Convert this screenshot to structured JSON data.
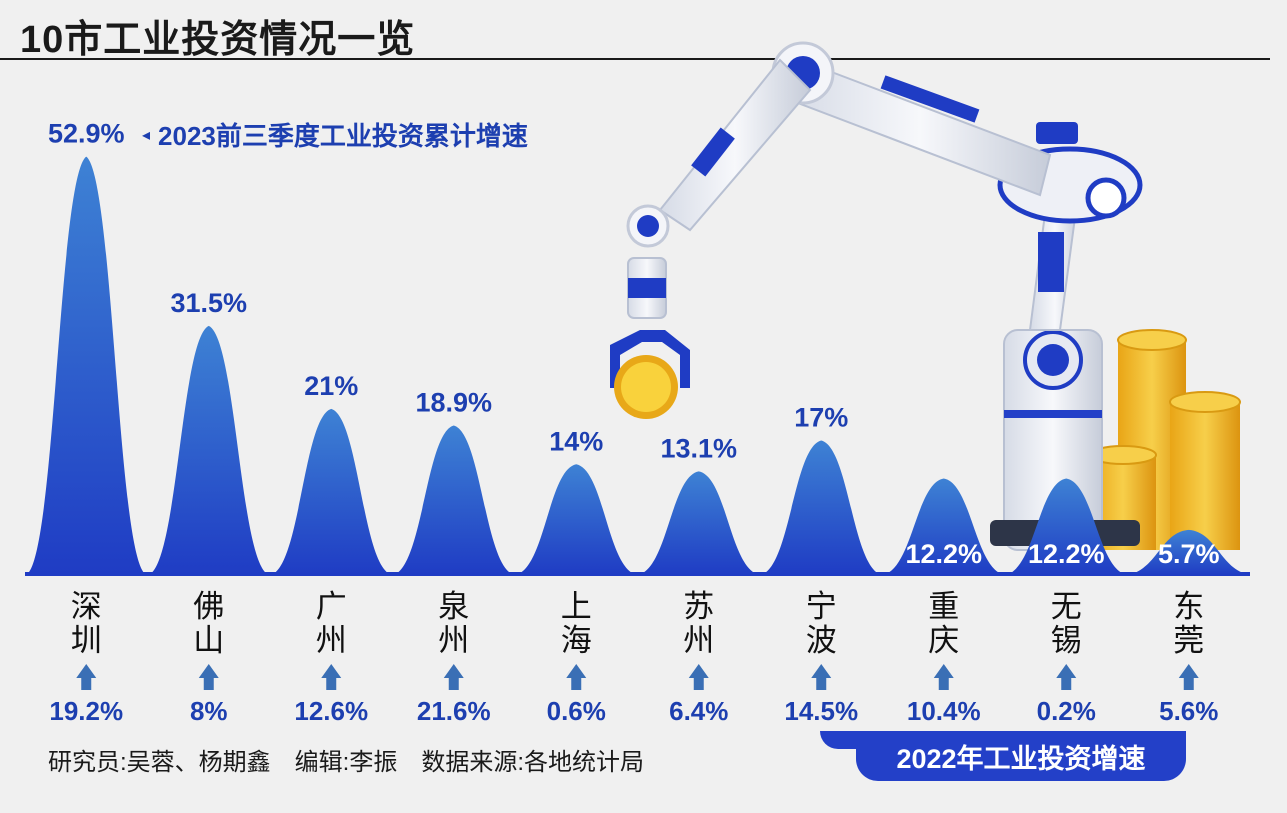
{
  "title": "10市工业投资情况一览",
  "legend": {
    "marker": "◂",
    "label": "2023前三季度工业投资累计增速"
  },
  "badge": "2022年工业投资增速",
  "credits": {
    "researchers": "研究员:吴蓉、杨期鑫",
    "editor": "编辑:李振",
    "source": "数据来源:各地统计局"
  },
  "colors": {
    "peak": "#1f3cc4",
    "peak_light": "#3e82d4",
    "label": "#1d3fb0",
    "arrow": "#3a6fb5"
  },
  "icons": {
    "growth": "up-arrow-icon",
    "illustration": "robot-arm-with-coins"
  },
  "chart_data": {
    "type": "area",
    "categories": [
      "深圳",
      "佛山",
      "广州",
      "泉州",
      "上海",
      "苏州",
      "宁波",
      "重庆",
      "无锡",
      "东莞"
    ],
    "series": [
      {
        "name": "2023前三季度工业投资累计增速",
        "values": [
          52.9,
          31.5,
          21,
          18.9,
          14,
          13.1,
          17,
          12.2,
          12.2,
          5.7
        ],
        "labels": [
          "52.9%",
          "31.5%",
          "21%",
          "18.9%",
          "14%",
          "13.1%",
          "17%",
          "12.2%",
          "12.2%",
          "5.7%"
        ]
      },
      {
        "name": "2022年工业投资增速",
        "values": [
          19.2,
          8,
          12.6,
          21.6,
          0.6,
          6.4,
          14.5,
          10.4,
          0.2,
          5.6
        ],
        "labels": [
          "19.2%",
          "8%",
          "12.6%",
          "21.6%",
          "0.6%",
          "6.4%",
          "14.5%",
          "10.4%",
          "0.2%",
          "5.6%"
        ]
      }
    ],
    "ylim": [
      0,
      55
    ],
    "grid": false
  }
}
